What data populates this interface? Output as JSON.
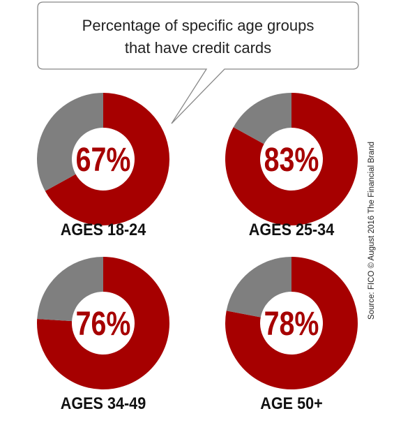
{
  "colors": {
    "have_card": "#a60000",
    "no_card": "#7f7f7f",
    "callout_border": "#888888",
    "callout_fill": "#ffffff",
    "text_dark": "#111111"
  },
  "callout": {
    "line1": "Percentage of specific age groups",
    "line2": "that have credit cards"
  },
  "source": "Source: FICO © August 2016 The Financial Brand",
  "chart_data": {
    "type": "pie",
    "title": "Percentage of specific age groups that have credit cards",
    "unit": "%",
    "charts": [
      {
        "label": "AGES 18-24",
        "value": 67,
        "display": "67%"
      },
      {
        "label": "AGES 25-34",
        "value": 83,
        "display": "83%"
      },
      {
        "label": "AGES 34-49",
        "value": 76,
        "display": "76%"
      },
      {
        "label": "AGE 50+",
        "value": 78,
        "display": "78%"
      }
    ]
  }
}
